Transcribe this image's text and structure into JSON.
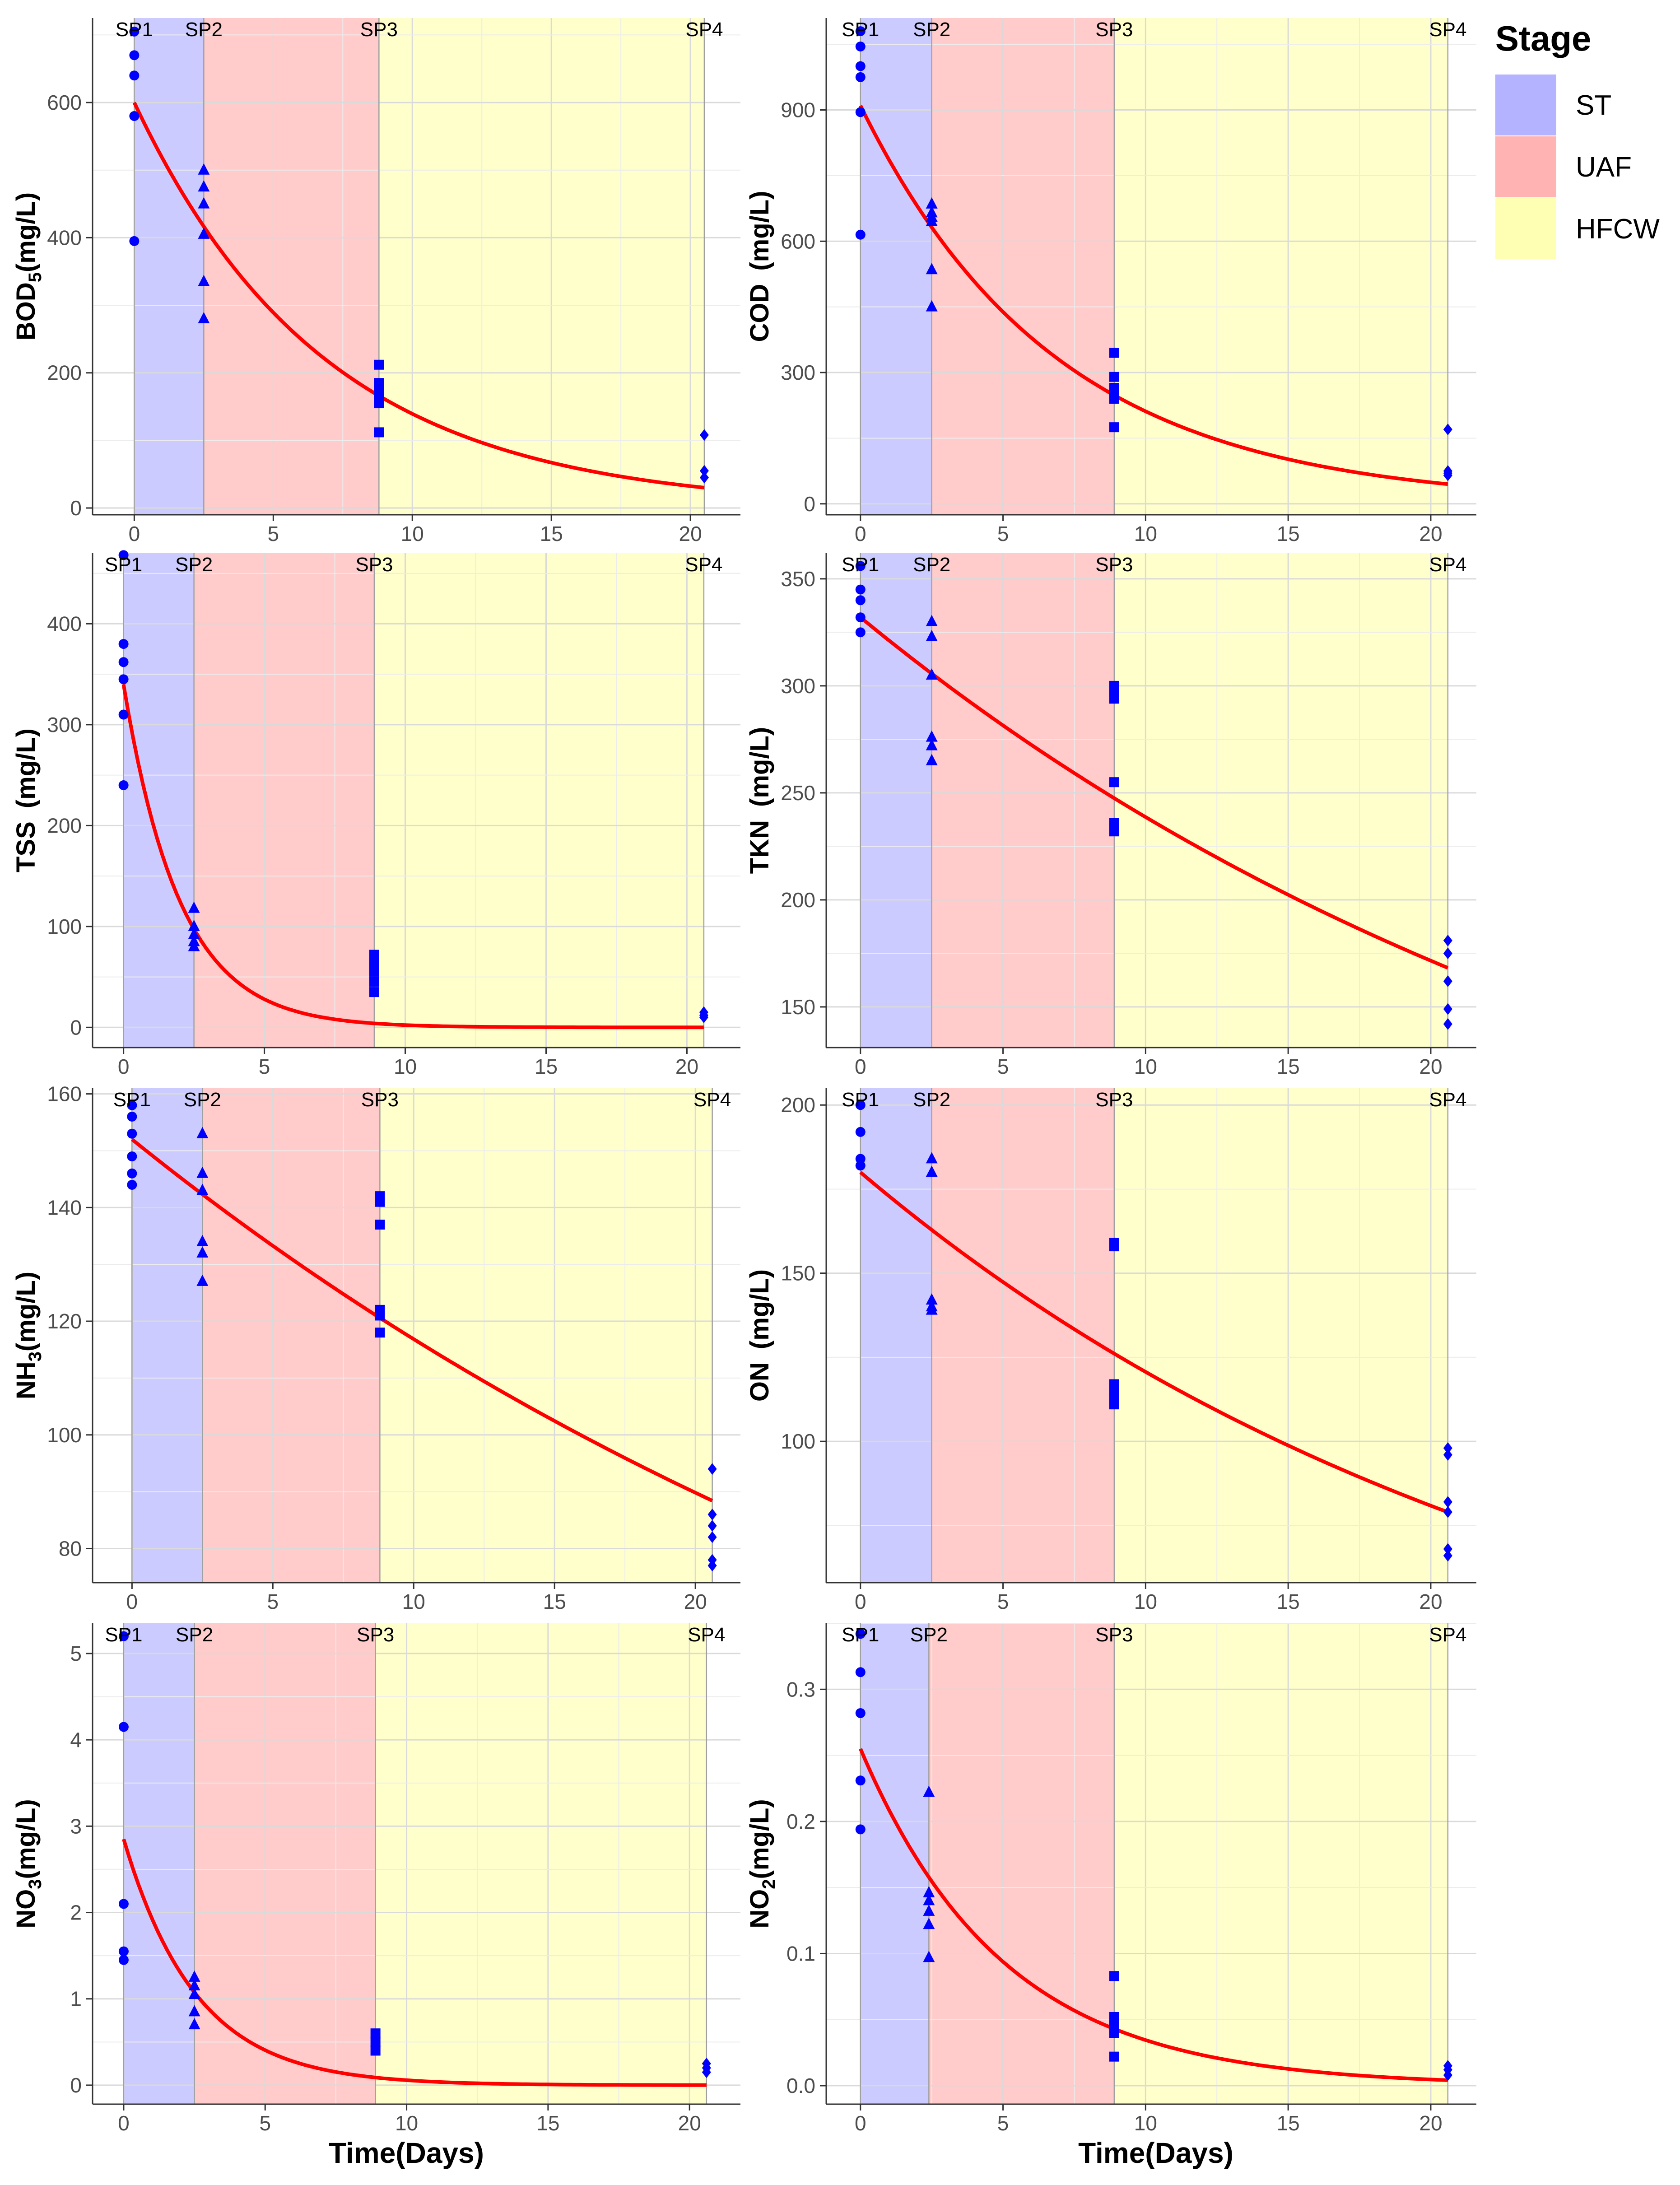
{
  "legend": {
    "title": "Stage",
    "items": [
      {
        "label": "ST",
        "color": "#b3b3ff"
      },
      {
        "label": "UAF",
        "color": "#ffb3b3"
      },
      {
        "label": "HFCW",
        "color": "#ffffb3"
      }
    ]
  },
  "x_axis_title": "Time(Days)",
  "chart_data": [
    {
      "type": "scatter",
      "id": "bod5",
      "ylabel_main": "BOD",
      "ylabel_sub": "5",
      "ylabel_units": "(mg/L)",
      "xlim": [
        -1.5,
        21.8
      ],
      "ylim": [
        -10,
        725
      ],
      "xticks": [
        0,
        5,
        10,
        15,
        20
      ],
      "yticks": [
        0,
        200,
        400,
        600
      ],
      "stage_bounds": [
        0,
        2.5,
        8.8,
        20.5
      ],
      "sampling_points": [
        {
          "label": "SP1",
          "x": 0
        },
        {
          "label": "SP2",
          "x": 2.5
        },
        {
          "label": "SP3",
          "x": 8.8
        },
        {
          "label": "SP4",
          "x": 20.5
        }
      ],
      "series": [
        {
          "name": "SP1",
          "shape": "circle",
          "x": 0,
          "values": [
            705,
            670,
            640,
            580,
            395
          ]
        },
        {
          "name": "SP2",
          "shape": "triangle",
          "x": 2.5,
          "values": [
            500,
            475,
            450,
            405,
            335,
            280
          ]
        },
        {
          "name": "SP3",
          "shape": "square",
          "x": 8.8,
          "values": [
            212,
            185,
            175,
            165,
            155,
            112
          ]
        },
        {
          "name": "SP4",
          "shape": "diamond",
          "x": 20.5,
          "values": [
            108,
            55,
            45
          ]
        }
      ],
      "fit": {
        "a": 600,
        "k": 0.146,
        "x_end": 20.5
      }
    },
    {
      "type": "scatter",
      "id": "cod",
      "ylabel_main": "COD",
      "ylabel_sub": "",
      "ylabel_units": "(mg/L)",
      "xlim": [
        -1.2,
        21.6
      ],
      "ylim": [
        -25,
        1110
      ],
      "xticks": [
        0,
        5,
        10,
        15,
        20
      ],
      "yticks": [
        0,
        300,
        600,
        900
      ],
      "stage_bounds": [
        0,
        2.5,
        8.9,
        20.6
      ],
      "sampling_points": [
        {
          "label": "SP1",
          "x": 0
        },
        {
          "label": "SP2",
          "x": 2.5
        },
        {
          "label": "SP3",
          "x": 8.9
        },
        {
          "label": "SP4",
          "x": 20.6
        }
      ],
      "series": [
        {
          "name": "SP1",
          "shape": "circle",
          "x": 0,
          "values": [
            1080,
            1045,
            1000,
            975,
            895,
            615
          ]
        },
        {
          "name": "SP2",
          "shape": "triangle",
          "x": 2.5,
          "values": [
            685,
            665,
            655,
            645,
            535,
            450
          ]
        },
        {
          "name": "SP3",
          "shape": "square",
          "x": 8.9,
          "values": [
            345,
            290,
            265,
            250,
            240,
            175
          ]
        },
        {
          "name": "SP4",
          "shape": "diamond",
          "x": 20.6,
          "values": [
            170,
            75,
            70,
            65
          ]
        }
      ],
      "fit": {
        "a": 910,
        "k": 0.146,
        "x_end": 20.6
      }
    },
    {
      "type": "scatter",
      "id": "tss",
      "ylabel_main": "TSS",
      "ylabel_sub": "",
      "ylabel_units": "(mg/L)",
      "xlim": [
        -1.1,
        21.9
      ],
      "ylim": [
        -20,
        470
      ],
      "xticks": [
        0,
        5,
        10,
        15,
        20
      ],
      "yticks": [
        0,
        100,
        200,
        300,
        400
      ],
      "stage_bounds": [
        0,
        2.5,
        8.9,
        20.6
      ],
      "sampling_points": [
        {
          "label": "SP1",
          "x": 0
        },
        {
          "label": "SP2",
          "x": 2.5
        },
        {
          "label": "SP3",
          "x": 8.9
        },
        {
          "label": "SP4",
          "x": 20.6
        }
      ],
      "series": [
        {
          "name": "SP1",
          "shape": "circle",
          "x": 0,
          "values": [
            468,
            380,
            362,
            345,
            310,
            240
          ]
        },
        {
          "name": "SP2",
          "shape": "triangle",
          "x": 2.5,
          "values": [
            118,
            100,
            92,
            85,
            80
          ]
        },
        {
          "name": "SP3",
          "shape": "square",
          "x": 8.9,
          "values": [
            72,
            65,
            60,
            55,
            45,
            35
          ]
        },
        {
          "name": "SP4",
          "shape": "diamond",
          "x": 20.6,
          "values": [
            15,
            12,
            10
          ]
        }
      ],
      "fit": {
        "a": 340,
        "k": 0.5,
        "x_end": 20.6
      }
    },
    {
      "type": "scatter",
      "id": "tkn",
      "ylabel_main": "TKN",
      "ylabel_sub": "",
      "ylabel_units": "(mg/L)",
      "xlim": [
        -1.2,
        21.6
      ],
      "ylim": [
        131,
        362
      ],
      "xticks": [
        0,
        5,
        10,
        15,
        20
      ],
      "yticks": [
        150,
        200,
        250,
        300,
        350
      ],
      "stage_bounds": [
        0,
        2.5,
        8.9,
        20.6
      ],
      "sampling_points": [
        {
          "label": "SP1",
          "x": 0
        },
        {
          "label": "SP2",
          "x": 2.5
        },
        {
          "label": "SP3",
          "x": 8.9
        },
        {
          "label": "SP4",
          "x": 20.6
        }
      ],
      "series": [
        {
          "name": "SP1",
          "shape": "circle",
          "x": 0,
          "values": [
            356,
            345,
            340,
            332,
            325
          ]
        },
        {
          "name": "SP2",
          "shape": "triangle",
          "x": 2.5,
          "values": [
            330,
            323,
            305,
            276,
            272,
            265
          ]
        },
        {
          "name": "SP3",
          "shape": "square",
          "x": 8.9,
          "values": [
            300,
            297,
            294,
            255,
            236,
            232
          ]
        },
        {
          "name": "SP4",
          "shape": "diamond",
          "x": 20.6,
          "values": [
            181,
            175,
            162,
            149,
            142
          ]
        }
      ],
      "fit": {
        "a": 332,
        "k": 0.033,
        "x_end": 20.6
      }
    },
    {
      "type": "scatter",
      "id": "nh3",
      "ylabel_main": "NH",
      "ylabel_sub": "3",
      "ylabel_units": "(mg/L)",
      "xlim": [
        -1.4,
        21.6
      ],
      "ylim": [
        74,
        161
      ],
      "xticks": [
        0,
        5,
        10,
        15,
        20
      ],
      "yticks": [
        80,
        100,
        120,
        140,
        160
      ],
      "stage_bounds": [
        0,
        2.5,
        8.8,
        20.6
      ],
      "sampling_points": [
        {
          "label": "SP1",
          "x": 0
        },
        {
          "label": "SP2",
          "x": 2.5
        },
        {
          "label": "SP3",
          "x": 8.8
        },
        {
          "label": "SP4",
          "x": 20.6
        }
      ],
      "series": [
        {
          "name": "SP1",
          "shape": "circle",
          "x": 0,
          "values": [
            158,
            156,
            153,
            149,
            146,
            144
          ]
        },
        {
          "name": "SP2",
          "shape": "triangle",
          "x": 2.5,
          "values": [
            153,
            146,
            143,
            134,
            132,
            127
          ]
        },
        {
          "name": "SP3",
          "shape": "square",
          "x": 8.8,
          "values": [
            142,
            141,
            137,
            122,
            121,
            118
          ]
        },
        {
          "name": "SP4",
          "shape": "diamond",
          "x": 20.6,
          "values": [
            94,
            86,
            84,
            82,
            78,
            77
          ]
        }
      ],
      "fit": {
        "a": 152,
        "k": 0.0263,
        "x_end": 20.6
      }
    },
    {
      "type": "scatter",
      "id": "on",
      "ylabel_main": "ON",
      "ylabel_sub": "",
      "ylabel_units": "(mg/L)",
      "xlim": [
        -1.2,
        21.6
      ],
      "ylim": [
        58,
        205
      ],
      "xticks": [
        0,
        5,
        10,
        15,
        20
      ],
      "yticks": [
        100,
        150,
        200
      ],
      "stage_bounds": [
        0,
        2.5,
        8.9,
        20.6
      ],
      "sampling_points": [
        {
          "label": "SP1",
          "x": 0
        },
        {
          "label": "SP2",
          "x": 2.5
        },
        {
          "label": "SP3",
          "x": 8.9
        },
        {
          "label": "SP4",
          "x": 20.6
        }
      ],
      "series": [
        {
          "name": "SP1",
          "shape": "circle",
          "x": 0,
          "values": [
            200,
            192,
            184,
            182
          ]
        },
        {
          "name": "SP2",
          "shape": "triangle",
          "x": 2.5,
          "values": [
            184,
            180,
            142,
            140,
            139
          ]
        },
        {
          "name": "SP3",
          "shape": "square",
          "x": 8.9,
          "values": [
            159,
            158,
            117,
            115,
            113,
            111
          ]
        },
        {
          "name": "SP4",
          "shape": "diamond",
          "x": 20.6,
          "values": [
            98,
            96,
            82,
            79,
            68,
            66
          ]
        }
      ],
      "fit": {
        "a": 180,
        "k": 0.04,
        "x_end": 20.6
      }
    },
    {
      "type": "scatter",
      "id": "no3",
      "ylabel_main": "NO",
      "ylabel_sub": "3",
      "ylabel_units": "(mg/L)",
      "xlim": [
        -1.1,
        21.8
      ],
      "ylim": [
        -0.22,
        5.35
      ],
      "xticks": [
        0,
        5,
        10,
        15,
        20
      ],
      "yticks": [
        0,
        1,
        2,
        3,
        4,
        5
      ],
      "stage_bounds": [
        0,
        2.5,
        8.9,
        20.6
      ],
      "sampling_points": [
        {
          "label": "SP1",
          "x": 0
        },
        {
          "label": "SP2",
          "x": 2.5
        },
        {
          "label": "SP3",
          "x": 8.9
        },
        {
          "label": "SP4",
          "x": 20.6
        }
      ],
      "series": [
        {
          "name": "SP1",
          "shape": "circle",
          "x": 0,
          "values": [
            5.2,
            4.15,
            2.1,
            1.55,
            1.45
          ]
        },
        {
          "name": "SP2",
          "shape": "triangle",
          "x": 2.5,
          "values": [
            1.25,
            1.15,
            1.05,
            0.85,
            0.7
          ]
        },
        {
          "name": "SP3",
          "shape": "square",
          "x": 8.9,
          "values": [
            0.6,
            0.5,
            0.4
          ]
        },
        {
          "name": "SP4",
          "shape": "diamond",
          "x": 20.6,
          "values": [
            0.25,
            0.2,
            0.15
          ]
        }
      ],
      "fit": {
        "a": 2.85,
        "k": 0.39,
        "x_end": 20.6
      }
    },
    {
      "type": "scatter",
      "id": "no2",
      "ylabel_main": "NO",
      "ylabel_sub": "2",
      "ylabel_units": "(mg/L)",
      "xlim": [
        -1.2,
        21.6
      ],
      "ylim": [
        -0.014,
        0.35
      ],
      "xticks": [
        0,
        5,
        10,
        15,
        20
      ],
      "yticks": [
        0.0,
        0.1,
        0.2,
        0.3
      ],
      "tick_format": 1,
      "stage_bounds": [
        0,
        2.4,
        8.9,
        20.6
      ],
      "sampling_points": [
        {
          "label": "SP1",
          "x": 0
        },
        {
          "label": "SP2",
          "x": 2.4
        },
        {
          "label": "SP3",
          "x": 8.9
        },
        {
          "label": "SP4",
          "x": 20.6
        }
      ],
      "series": [
        {
          "name": "SP1",
          "shape": "circle",
          "x": 0,
          "values": [
            0.342,
            0.313,
            0.282,
            0.231,
            0.194
          ]
        },
        {
          "name": "SP2",
          "shape": "triangle",
          "x": 2.4,
          "values": [
            0.222,
            0.146,
            0.14,
            0.132,
            0.122,
            0.097
          ]
        },
        {
          "name": "SP3",
          "shape": "square",
          "x": 8.9,
          "values": [
            0.083,
            0.052,
            0.047,
            0.04,
            0.022
          ]
        },
        {
          "name": "SP4",
          "shape": "diamond",
          "x": 20.6,
          "values": [
            0.015,
            0.012,
            0.008
          ]
        }
      ],
      "fit": {
        "a": 0.255,
        "k": 0.2,
        "x_end": 20.6
      }
    }
  ]
}
